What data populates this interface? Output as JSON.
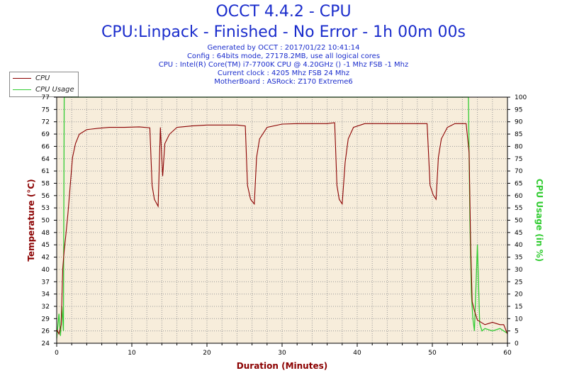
{
  "header": {
    "title": "OCCT 4.4.2 - CPU",
    "subtitle": "CPU:Linpack - Finished - No Error - 1h 00m 00s",
    "info_lines": [
      "Generated by OCCT : 2017/01/22 10:41:14",
      "Config : 64bits mode, 27178.2MB, use all logical cores",
      "CPU : Intel(R) Core(TM) i7-7700K CPU @ 4.20GHz () -1 Mhz FSB -1 Mhz",
      "Current clock : 4205 Mhz FSB 24 Mhz",
      "MotherBoard : ASRock: Z170 Extreme6"
    ]
  },
  "legend": {
    "items": [
      {
        "label": "CPU",
        "color": "#8b0000"
      },
      {
        "label": "CPU Usage",
        "color": "#33cc33"
      }
    ]
  },
  "chart_data": {
    "type": "line",
    "xlabel": "Duration (Minutes)",
    "ylabel": "Temperature (°C)",
    "y2label": "CPU Usage (in %)",
    "xlim": [
      0,
      60
    ],
    "ylim": [
      24,
      77
    ],
    "y2lim": [
      0,
      100
    ],
    "x_ticks": [
      0,
      10,
      20,
      30,
      40,
      50,
      60
    ],
    "y_ticks": [
      24,
      26,
      29,
      32,
      34,
      37,
      40,
      42,
      45,
      48,
      50,
      53,
      56,
      58,
      61,
      64,
      66,
      69,
      72,
      75,
      77
    ],
    "y2_ticks": [
      0,
      5,
      10,
      15,
      20,
      25,
      30,
      35,
      40,
      45,
      50,
      55,
      60,
      65,
      70,
      75,
      80,
      85,
      90,
      95,
      100
    ],
    "grid": true,
    "legend_position": "top-left",
    "plot_background": "#f7eddb",
    "series": [
      {
        "name": "CPU",
        "axis": "left",
        "color": "#8b0000",
        "points": [
          [
            0,
            27
          ],
          [
            0.3,
            26
          ],
          [
            0.6,
            28
          ],
          [
            0.8,
            40
          ],
          [
            1.0,
            44
          ],
          [
            1.2,
            47
          ],
          [
            1.5,
            52
          ],
          [
            1.8,
            58
          ],
          [
            2.1,
            64
          ],
          [
            2.5,
            67
          ],
          [
            3.0,
            69
          ],
          [
            4.0,
            70
          ],
          [
            5.5,
            70.3
          ],
          [
            7,
            70.5
          ],
          [
            9,
            70.5
          ],
          [
            11,
            70.6
          ],
          [
            12.4,
            70.4
          ],
          [
            12.7,
            58
          ],
          [
            13.0,
            55
          ],
          [
            13.5,
            53.5
          ],
          [
            13.8,
            70.5
          ],
          [
            14.1,
            60
          ],
          [
            14.4,
            67
          ],
          [
            15,
            69
          ],
          [
            16,
            70.5
          ],
          [
            18,
            70.8
          ],
          [
            20,
            71
          ],
          [
            22,
            71
          ],
          [
            24,
            71
          ],
          [
            25.1,
            70.8
          ],
          [
            25.4,
            58
          ],
          [
            25.8,
            55
          ],
          [
            26.3,
            54
          ],
          [
            26.6,
            64
          ],
          [
            27,
            68
          ],
          [
            28,
            70.5
          ],
          [
            30,
            71.2
          ],
          [
            32,
            71.3
          ],
          [
            34,
            71.3
          ],
          [
            36,
            71.3
          ],
          [
            37.0,
            71.5
          ],
          [
            37.3,
            58
          ],
          [
            37.6,
            55
          ],
          [
            38.0,
            54
          ],
          [
            38.4,
            63
          ],
          [
            38.8,
            68
          ],
          [
            39.5,
            70.5
          ],
          [
            41,
            71.3
          ],
          [
            43,
            71.3
          ],
          [
            45,
            71.3
          ],
          [
            47,
            71.3
          ],
          [
            49.3,
            71.3
          ],
          [
            49.7,
            58
          ],
          [
            50.1,
            56
          ],
          [
            50.5,
            55
          ],
          [
            50.8,
            64
          ],
          [
            51.2,
            68
          ],
          [
            52,
            70.5
          ],
          [
            53,
            71.3
          ],
          [
            54.5,
            71.3
          ],
          [
            54.9,
            65
          ],
          [
            55.1,
            45
          ],
          [
            55.3,
            33
          ],
          [
            55.6,
            31
          ],
          [
            56,
            29
          ],
          [
            57,
            28
          ],
          [
            58,
            28.5
          ],
          [
            59,
            28
          ],
          [
            59.5,
            28
          ],
          [
            60,
            26
          ]
        ]
      },
      {
        "name": "CPU Usage",
        "axis": "right",
        "color": "#33cc33",
        "points": [
          [
            0,
            2
          ],
          [
            0.3,
            12
          ],
          [
            0.5,
            3
          ],
          [
            0.7,
            15
          ],
          [
            0.9,
            5
          ],
          [
            1.0,
            100
          ],
          [
            12.4,
            100
          ],
          [
            13.0,
            100
          ],
          [
            25.1,
            100
          ],
          [
            37.0,
            100
          ],
          [
            49.3,
            100
          ],
          [
            54.8,
            100
          ],
          [
            55.0,
            50
          ],
          [
            55.2,
            20
          ],
          [
            55.4,
            10
          ],
          [
            55.6,
            5
          ],
          [
            56,
            40
          ],
          [
            56.3,
            8
          ],
          [
            56.6,
            5
          ],
          [
            57,
            6
          ],
          [
            58,
            5
          ],
          [
            59,
            6
          ],
          [
            59.5,
            5
          ],
          [
            60,
            4
          ]
        ]
      }
    ]
  }
}
